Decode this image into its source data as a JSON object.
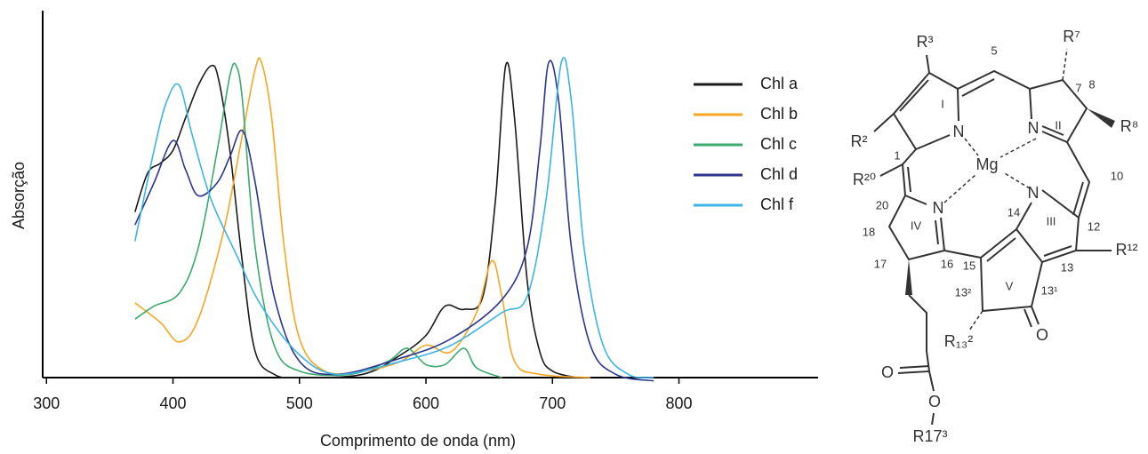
{
  "chart_data": {
    "type": "line",
    "x_label": "Comprimento de onda (nm)",
    "y_label": "Absorção",
    "xlim": [
      297,
      910
    ],
    "ylim": [
      0,
      1.13
    ],
    "xticks": [
      300,
      400,
      500,
      600,
      700,
      800
    ],
    "legend": "upper right",
    "series": [
      {
        "name": "Chl a",
        "color": "#1a1a1a",
        "x": [
          370,
          380,
          390,
          400,
          410,
          420,
          430,
          436,
          445,
          455,
          465,
          480,
          500,
          550,
          580,
          600,
          615,
          630,
          645,
          655,
          663,
          670,
          680,
          690,
          700,
          720
        ],
        "values": [
          0.51,
          0.63,
          0.66,
          0.7,
          0.8,
          0.9,
          0.96,
          0.92,
          0.7,
          0.35,
          0.08,
          0.01,
          0,
          0.01,
          0.07,
          0.13,
          0.22,
          0.21,
          0.25,
          0.55,
          0.96,
          0.8,
          0.3,
          0.08,
          0.02,
          0
        ]
      },
      {
        "name": "Chl b",
        "color": "#f5a623",
        "x": [
          370,
          390,
          405,
          420,
          440,
          455,
          465,
          470,
          478,
          488,
          500,
          520,
          550,
          580,
          600,
          620,
          640,
          652,
          660,
          670,
          690,
          730
        ],
        "values": [
          0.23,
          0.17,
          0.11,
          0.18,
          0.45,
          0.75,
          0.95,
          0.97,
          0.8,
          0.4,
          0.12,
          0.02,
          0.02,
          0.05,
          0.1,
          0.08,
          0.2,
          0.36,
          0.25,
          0.05,
          0.01,
          0
        ]
      },
      {
        "name": "Chl c",
        "color": "#3aaa6e",
        "x": [
          370,
          385,
          405,
          420,
          435,
          445,
          450,
          455,
          465,
          480,
          500,
          540,
          570,
          585,
          600,
          615,
          630,
          640,
          660
        ],
        "values": [
          0.18,
          0.22,
          0.26,
          0.4,
          0.7,
          0.93,
          0.96,
          0.85,
          0.4,
          0.1,
          0.02,
          0.01,
          0.05,
          0.09,
          0.04,
          0.04,
          0.09,
          0.03,
          0
        ]
      },
      {
        "name": "Chl d",
        "color": "#2c3590",
        "x": [
          370,
          385,
          400,
          410,
          420,
          435,
          445,
          455,
          465,
          480,
          500,
          530,
          580,
          620,
          660,
          680,
          690,
          697,
          705,
          715,
          730,
          750,
          780
        ],
        "values": [
          0.47,
          0.6,
          0.73,
          0.64,
          0.56,
          0.6,
          0.68,
          0.76,
          0.6,
          0.25,
          0.05,
          0.01,
          0.06,
          0.12,
          0.24,
          0.4,
          0.7,
          0.97,
          0.85,
          0.4,
          0.1,
          0.01,
          -0.01
        ]
      },
      {
        "name": "Chl f",
        "color": "#3cb4e6",
        "x": [
          370,
          385,
          395,
          405,
          415,
          430,
          450,
          470,
          500,
          530,
          580,
          620,
          660,
          680,
          695,
          707,
          715,
          725,
          740,
          760,
          780
        ],
        "values": [
          0.42,
          0.7,
          0.85,
          0.9,
          0.75,
          0.55,
          0.38,
          0.22,
          0.07,
          0.01,
          0.05,
          0.1,
          0.2,
          0.25,
          0.55,
          0.97,
          0.85,
          0.4,
          0.1,
          0.01,
          0
        ]
      }
    ]
  },
  "structure": {
    "atoms": [
      "N",
      "N",
      "N",
      "N",
      "Mg",
      "O",
      "O",
      "O"
    ],
    "substituents": [
      "R³",
      "R²",
      "R²⁰",
      "R⁷",
      "R⁸",
      "R¹²",
      "R₁₃²",
      "R17³"
    ],
    "rings": [
      "I",
      "II",
      "III",
      "IV",
      "V"
    ],
    "locants": [
      "1",
      "5",
      "7",
      "8",
      "10",
      "12",
      "13",
      "14",
      "15",
      "16",
      "17",
      "18",
      "20",
      "13²",
      "13¹"
    ]
  }
}
